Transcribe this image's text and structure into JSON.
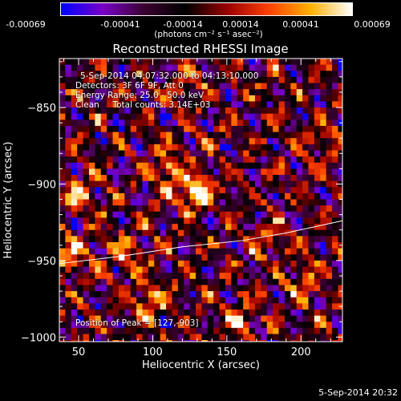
{
  "colorbar": {
    "ticks": [
      "-0.00069",
      "-0.00041",
      "-0.00014",
      "0.00014",
      "0.00041",
      "0.00069"
    ],
    "units_label": "(photons cm⁻² s⁻¹ asec⁻²)"
  },
  "annotations": {
    "time_range": "5-Sep-2014 04:07:32.000 to 04:13:10.000",
    "detectors": "Detectors: 3F 6F 9F, Att 0",
    "energy_range": "Energy Range: 25.0 - 50.0 keV",
    "clean_counts": "Clean     Total counts: 3.14E+03",
    "peak_position": "Position of Peak = [127,-903]"
  },
  "footer_date": "5-Sep-2014 20:32",
  "chart_data": {
    "type": "heatmap",
    "title": "Reconstructed RHESSI Image",
    "xlabel": "Heliocentric X (arcsec)",
    "ylabel": "Heliocentric Y (arcsec)",
    "xlim": [
      37,
      228
    ],
    "ylim": [
      -1003,
      -818
    ],
    "x_ticks": [
      50,
      100,
      150,
      200
    ],
    "y_ticks": [
      -850,
      -900,
      -950,
      -1000
    ],
    "colorbar_range": [
      -0.00069,
      0.00069
    ],
    "colormap": [
      "#0000ff",
      "#7a00c8",
      "#3a0030",
      "#000000",
      "#9a0000",
      "#ff4000",
      "#ffb000",
      "#ffffff"
    ],
    "limb_color": "#ffffff",
    "limb_curve": [
      [
        37,
        -952
      ],
      [
        80,
        -947
      ],
      [
        120,
        -941
      ],
      [
        160,
        -937
      ],
      [
        190,
        -932
      ],
      [
        228,
        -924
      ]
    ],
    "peak": [
      127,
      -903
    ],
    "bright_sources": [
      {
        "x": 127,
        "y": -903,
        "intensity": 1.0
      },
      {
        "x": 108,
        "y": -888,
        "intensity": 0.75
      },
      {
        "x": 42,
        "y": -945,
        "intensity": 0.8
      },
      {
        "x": 48,
        "y": -905,
        "intensity": 0.65
      },
      {
        "x": 95,
        "y": -975,
        "intensity": 0.7
      },
      {
        "x": 80,
        "y": -945,
        "intensity": 0.6
      },
      {
        "x": 155,
        "y": -985,
        "intensity": 0.6
      },
      {
        "x": 200,
        "y": -960,
        "intensity": 0.55
      },
      {
        "x": 215,
        "y": -870,
        "intensity": 0.5
      },
      {
        "x": 175,
        "y": -935,
        "intensity": 0.55
      },
      {
        "x": 120,
        "y": -835,
        "intensity": 0.45
      }
    ]
  }
}
